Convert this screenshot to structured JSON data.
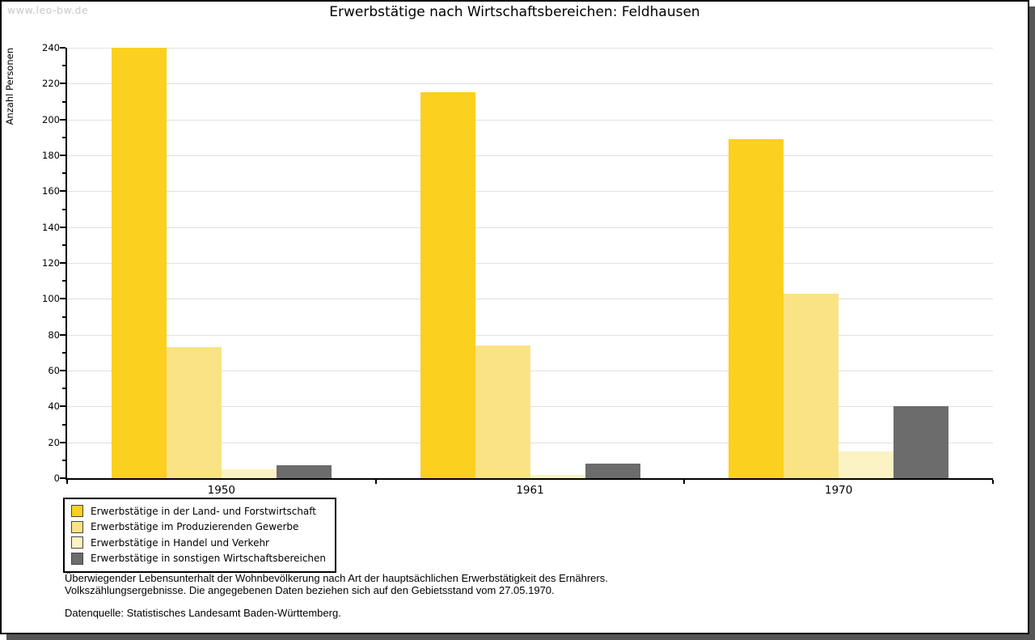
{
  "watermark": "www.leo-bw.de",
  "footnotes": {
    "line1": "Überwiegender Lebensunterhalt der Wohnbevölkerung nach Art der hauptsächlichen Erwerbstätigkeit des Ernährers.",
    "line2": "Volkszählungsergebnisse. Die angegebenen Daten beziehen sich auf den Gebietsstand vom 27.05.1970.",
    "source": "Datenquelle: Statistisches Landesamt Baden-Württemberg."
  },
  "colors": {
    "grid": "#e0e0e0",
    "axis": "#000000",
    "shadow": "#565656",
    "watermark": "#c9c9c9"
  },
  "chart_data": {
    "type": "bar",
    "title": "Erwerbstätige nach Wirtschaftsbereichen: Feldhausen",
    "xlabel": "",
    "ylabel": "Anzahl Personen",
    "categories": [
      "1950",
      "1961",
      "1970"
    ],
    "series": [
      {
        "name": "Erwerbstätige in der Land- und Forstwirtschaft",
        "color": "#FBD01E",
        "values": [
          240,
          215,
          189
        ]
      },
      {
        "name": "Erwerbstätige im Produzierenden Gewerbe",
        "color": "#FAE385",
        "values": [
          73,
          74,
          103
        ]
      },
      {
        "name": "Erwerbstätige in Handel und Verkehr",
        "color": "#FBF3C3",
        "values": [
          5,
          2,
          15
        ]
      },
      {
        "name": "Erwerbstätige in sonstigen Wirtschaftsbereichen",
        "color": "#6C6C6C",
        "values": [
          7,
          8,
          40
        ]
      }
    ],
    "ylim": [
      0,
      240
    ],
    "yticks": [
      0,
      20,
      40,
      60,
      80,
      100,
      120,
      140,
      160,
      180,
      200,
      220,
      240
    ],
    "minor_tick_step": 10,
    "grid": "horizontal-major",
    "legend_position": "bottom-left"
  }
}
